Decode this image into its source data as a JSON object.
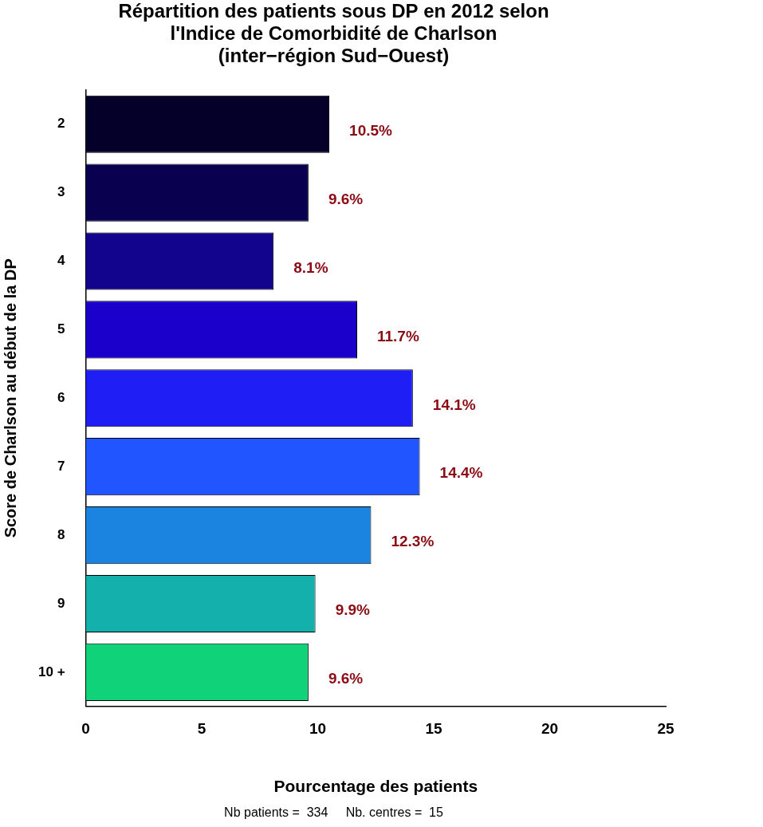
{
  "chart_data": {
    "type": "bar",
    "orientation": "horizontal",
    "title": [
      "Répartition des patients sous DP en 2012 selon",
      "l'Indice de Comorbidité de Charlson",
      "(inter−région Sud−Ouest)"
    ],
    "x_label": "Pourcentage des patients",
    "y_label": "Score de Charlson au début de la DP",
    "annotations": [
      "Nb patients =  334     Nb. centres =  15"
    ],
    "categories": [
      "2",
      "3",
      "4",
      "5",
      "6",
      "7",
      "8",
      "9",
      "10 +"
    ],
    "values": [
      10.5,
      9.6,
      8.1,
      11.7,
      14.1,
      14.4,
      12.3,
      9.9,
      9.6
    ],
    "value_labels": [
      "10.5%",
      "9.6%",
      "8.1%",
      "11.7%",
      "14.1%",
      "14.4%",
      "12.3%",
      "9.9%",
      "9.6%"
    ],
    "colors": [
      "#05002a",
      "#0a0050",
      "#13048e",
      "#1b00cc",
      "#1e1ef5",
      "#2155ff",
      "#1a84e0",
      "#14b0ac",
      "#10d278"
    ],
    "xlim": [
      0,
      25
    ],
    "xticks": [
      0,
      5,
      10,
      15,
      20,
      25
    ],
    "grid": false,
    "data_labels": true
  }
}
